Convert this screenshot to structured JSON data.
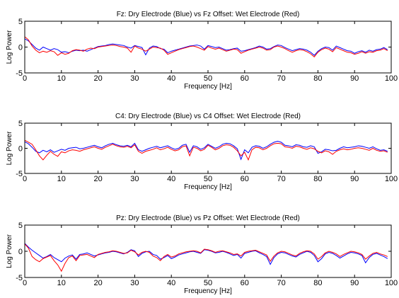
{
  "chart_data": [
    {
      "type": "line",
      "title": "Fz: Dry Electrode (Blue) vs Fz Offset: Wet Electrode (Red)",
      "xlabel": "Frequency [Hz]",
      "ylabel": "Log Power",
      "xlim": [
        0,
        100
      ],
      "ylim": [
        -5,
        5
      ],
      "xticks": [
        0,
        10,
        20,
        30,
        40,
        50,
        60,
        70,
        80,
        90,
        100
      ],
      "yticks": [
        -5,
        0,
        5
      ],
      "grid": false,
      "legend": "none",
      "x": [
        0,
        1,
        2,
        3,
        4,
        5,
        6,
        7,
        8,
        9,
        10,
        11,
        12,
        13,
        14,
        15,
        16,
        17,
        18,
        19,
        20,
        21,
        22,
        23,
        24,
        25,
        26,
        27,
        28,
        29,
        30,
        31,
        32,
        33,
        34,
        35,
        36,
        37,
        38,
        39,
        40,
        41,
        42,
        43,
        44,
        45,
        46,
        47,
        48,
        49,
        50,
        51,
        52,
        53,
        54,
        55,
        56,
        57,
        58,
        59,
        60,
        61,
        62,
        63,
        64,
        65,
        66,
        67,
        68,
        69,
        70,
        71,
        72,
        73,
        74,
        75,
        76,
        77,
        78,
        79,
        80,
        81,
        82,
        83,
        84,
        85,
        86,
        87,
        88,
        89,
        90,
        91,
        92,
        93,
        94,
        95,
        96,
        97,
        98,
        99
      ],
      "series": [
        {
          "color": "#0000ff",
          "values": [
            1.6,
            1.2,
            0.5,
            -0.2,
            -0.6,
            0.0,
            -0.3,
            -0.6,
            -0.3,
            -0.5,
            -1.0,
            -0.9,
            -1.1,
            -0.8,
            -0.6,
            -0.7,
            -0.6,
            -0.8,
            -0.5,
            -0.2,
            0.1,
            0.2,
            0.3,
            0.5,
            0.6,
            0.5,
            0.4,
            0.3,
            0.0,
            -0.2,
            0.3,
            0.1,
            -0.1,
            -1.5,
            -0.2,
            0.2,
            0.1,
            -0.3,
            -0.4,
            -1.1,
            -0.8,
            -0.6,
            -0.4,
            -0.2,
            0.0,
            0.2,
            0.3,
            0.4,
            0.2,
            -0.4,
            0.3,
            0.1,
            -0.1,
            0.0,
            -0.3,
            -0.6,
            -0.5,
            -0.3,
            -0.2,
            -0.8,
            -0.7,
            -0.5,
            -0.3,
            -0.1,
            0.2,
            0.0,
            -0.4,
            -0.3,
            0.1,
            0.4,
            0.3,
            -0.1,
            -0.4,
            -0.7,
            -0.5,
            -0.3,
            -0.4,
            -0.6,
            -1.0,
            -1.6,
            -0.8,
            -0.3,
            0.0,
            -0.1,
            -0.6,
            0.2,
            -0.1,
            -0.4,
            -0.7,
            -0.8,
            -1.2,
            -0.9,
            -0.7,
            -1.0,
            -0.6,
            -0.8,
            -0.5,
            -0.4,
            -0.1,
            -0.5
          ]
        },
        {
          "color": "#ff0000",
          "values": [
            2.0,
            1.4,
            0.2,
            -0.6,
            -1.1,
            -0.8,
            -1.0,
            -0.7,
            -0.9,
            -1.6,
            -1.1,
            -1.4,
            -1.2,
            -0.7,
            -0.5,
            -0.6,
            -0.8,
            -0.4,
            -0.2,
            -0.3,
            0.0,
            0.1,
            0.2,
            0.3,
            0.4,
            0.3,
            0.1,
            0.0,
            -0.2,
            -1.0,
            0.2,
            -0.2,
            -0.4,
            -0.8,
            -0.4,
            0.0,
            -0.1,
            -0.2,
            -0.6,
            -1.4,
            -1.1,
            -0.8,
            -0.5,
            -0.3,
            -0.1,
            0.1,
            0.2,
            0.0,
            -0.3,
            -0.6,
            0.1,
            -0.2,
            -0.4,
            -0.2,
            -0.5,
            -0.8,
            -0.6,
            -0.4,
            -0.5,
            -1.2,
            -0.9,
            -0.6,
            -0.4,
            -0.2,
            0.0,
            -0.2,
            -0.6,
            -0.5,
            0.0,
            0.2,
            0.0,
            -0.3,
            -0.7,
            -1.0,
            -0.7,
            -0.5,
            -0.6,
            -0.9,
            -1.3,
            -1.9,
            -1.0,
            -0.5,
            -0.2,
            -0.4,
            -0.9,
            -0.1,
            -0.4,
            -0.7,
            -1.0,
            -1.1,
            -1.4,
            -1.2,
            -0.9,
            -1.2,
            -0.9,
            -1.0,
            -0.7,
            -0.6,
            -0.3,
            -0.7
          ]
        }
      ]
    },
    {
      "type": "line",
      "title": "C4: Dry Electrode (Blue) vs C4 Offset: Wet Electrode (Red)",
      "xlabel": "Frequency [Hz]",
      "ylabel": "Log Power",
      "xlim": [
        0,
        100
      ],
      "ylim": [
        -5,
        5
      ],
      "xticks": [
        0,
        10,
        20,
        30,
        40,
        50,
        60,
        70,
        80,
        90,
        100
      ],
      "yticks": [
        -5,
        0,
        5
      ],
      "grid": false,
      "legend": "none",
      "x": [
        0,
        1,
        2,
        3,
        4,
        5,
        6,
        7,
        8,
        9,
        10,
        11,
        12,
        13,
        14,
        15,
        16,
        17,
        18,
        19,
        20,
        21,
        22,
        23,
        24,
        25,
        26,
        27,
        28,
        29,
        30,
        31,
        32,
        33,
        34,
        35,
        36,
        37,
        38,
        39,
        40,
        41,
        42,
        43,
        44,
        45,
        46,
        47,
        48,
        49,
        50,
        51,
        52,
        53,
        54,
        55,
        56,
        57,
        58,
        59,
        60,
        61,
        62,
        63,
        64,
        65,
        66,
        67,
        68,
        69,
        70,
        71,
        72,
        73,
        74,
        75,
        76,
        77,
        78,
        79,
        80,
        81,
        82,
        83,
        84,
        85,
        86,
        87,
        88,
        89,
        90,
        91,
        92,
        93,
        94,
        95,
        96,
        97,
        98,
        99
      ],
      "series": [
        {
          "color": "#0000ff",
          "values": [
            1.3,
            0.9,
            0.2,
            -0.6,
            -0.9,
            -0.4,
            -0.7,
            -0.3,
            -0.8,
            -0.5,
            -0.2,
            -0.4,
            0.0,
            0.1,
            0.2,
            -0.1,
            0.0,
            0.2,
            0.4,
            0.6,
            0.3,
            0.1,
            0.5,
            0.8,
            1.0,
            0.7,
            0.5,
            0.4,
            0.6,
            0.3,
            1.0,
            -0.3,
            -0.6,
            -0.3,
            0.0,
            0.2,
            0.4,
            0.1,
            0.3,
            0.5,
            0.1,
            -0.2,
            0.0,
            0.6,
            0.8,
            -0.8,
            0.5,
            0.3,
            -0.2,
            0.1,
            0.8,
            0.4,
            0.0,
            0.3,
            0.8,
            1.0,
            0.9,
            0.5,
            -0.1,
            -2.2,
            -0.3,
            -0.9,
            0.2,
            0.5,
            0.4,
            0.0,
            0.3,
            0.8,
            1.2,
            1.4,
            1.2,
            0.6,
            0.5,
            0.3,
            0.7,
            0.6,
            0.3,
            0.2,
            0.5,
            0.3,
            -1.0,
            -0.7,
            -0.2,
            -0.3,
            -0.5,
            -0.4,
            0.0,
            0.3,
            0.1,
            0.2,
            0.3,
            0.5,
            0.4,
            0.2,
            0.0,
            0.3,
            -0.1,
            -0.4,
            -0.3,
            -0.6
          ]
        },
        {
          "color": "#ff0000",
          "values": [
            1.6,
            1.2,
            0.8,
            -0.3,
            -1.5,
            -2.3,
            -1.4,
            -0.6,
            -1.2,
            -1.6,
            -0.7,
            -0.9,
            -0.5,
            -0.3,
            -0.4,
            -0.6,
            -0.3,
            -0.1,
            0.1,
            0.3,
            0.0,
            -0.2,
            0.2,
            0.5,
            0.8,
            0.5,
            0.3,
            0.2,
            0.4,
            0.1,
            0.7,
            -0.6,
            -1.0,
            -0.6,
            -0.4,
            -0.2,
            0.1,
            -0.3,
            -0.1,
            0.2,
            -0.2,
            -0.5,
            -0.3,
            0.3,
            0.5,
            -1.5,
            0.2,
            0.0,
            -0.5,
            -0.2,
            0.6,
            0.2,
            -0.3,
            0.0,
            0.5,
            0.7,
            0.6,
            0.2,
            -0.5,
            -1.5,
            -0.8,
            -2.3,
            -0.3,
            0.2,
            0.1,
            -0.3,
            0.0,
            0.5,
            0.9,
            1.0,
            0.9,
            0.3,
            0.2,
            0.0,
            0.4,
            0.3,
            0.0,
            -0.2,
            0.1,
            -0.1,
            -0.6,
            -0.9,
            -0.5,
            -0.7,
            -1.2,
            -0.6,
            -0.3,
            -0.1,
            -0.3,
            -0.2,
            0.0,
            0.1,
            0.0,
            -0.2,
            -0.4,
            0.0,
            -0.4,
            -0.6,
            -0.5,
            -0.8
          ]
        }
      ]
    },
    {
      "type": "line",
      "title": "Pz: Dry Electrode (Blue) vs Pz Offset: Wet Electrode (Red)",
      "xlabel": "Frequency [Hz]",
      "ylabel": "Log Power",
      "xlim": [
        0,
        100
      ],
      "ylim": [
        -5,
        5
      ],
      "xticks": [
        0,
        10,
        20,
        30,
        40,
        50,
        60,
        70,
        80,
        90,
        100
      ],
      "yticks": [
        -5,
        0,
        5
      ],
      "grid": false,
      "legend": "none",
      "x": [
        0,
        1,
        2,
        3,
        4,
        5,
        6,
        7,
        8,
        9,
        10,
        11,
        12,
        13,
        14,
        15,
        16,
        17,
        18,
        19,
        20,
        21,
        22,
        23,
        24,
        25,
        26,
        27,
        28,
        29,
        30,
        31,
        32,
        33,
        34,
        35,
        36,
        37,
        38,
        39,
        40,
        41,
        42,
        43,
        44,
        45,
        46,
        47,
        48,
        49,
        50,
        51,
        52,
        53,
        54,
        55,
        56,
        57,
        58,
        59,
        60,
        61,
        62,
        63,
        64,
        65,
        66,
        67,
        68,
        69,
        70,
        71,
        72,
        73,
        74,
        75,
        76,
        77,
        78,
        79,
        80,
        81,
        82,
        83,
        84,
        85,
        86,
        87,
        88,
        89,
        90,
        91,
        92,
        93,
        94,
        95,
        96,
        97,
        98,
        99
      ],
      "series": [
        {
          "color": "#0000ff",
          "values": [
            1.5,
            0.8,
            0.2,
            -0.3,
            -0.8,
            -1.3,
            -1.0,
            -0.6,
            -1.2,
            -1.6,
            -2.0,
            -1.3,
            -0.9,
            -0.7,
            -1.5,
            -0.6,
            -0.5,
            -0.3,
            -0.6,
            -0.9,
            -0.7,
            -0.5,
            -0.3,
            -0.2,
            0.0,
            -0.1,
            -0.3,
            -0.5,
            -0.2,
            0.3,
            0.1,
            -1.0,
            -0.4,
            -0.1,
            0.0,
            -0.6,
            -0.8,
            -1.5,
            -1.2,
            -0.8,
            -1.4,
            -1.1,
            -0.7,
            -0.5,
            -0.3,
            -0.1,
            0.0,
            -0.2,
            -0.4,
            0.3,
            0.2,
            0.0,
            -0.3,
            -0.2,
            0.0,
            -0.2,
            -0.5,
            -0.8,
            -0.6,
            -1.3,
            -0.4,
            -0.2,
            0.0,
            0.1,
            -0.3,
            -0.6,
            -1.0,
            -2.5,
            -1.2,
            -0.5,
            -0.2,
            -0.3,
            -0.6,
            -0.9,
            -1.1,
            -0.6,
            -0.3,
            0.0,
            -0.2,
            -0.8,
            -2.0,
            -1.4,
            -0.5,
            -0.2,
            -0.4,
            -0.8,
            -1.3,
            -0.9,
            -0.5,
            -0.2,
            -0.3,
            -0.5,
            -0.8,
            -2.2,
            -1.2,
            -0.6,
            -0.4,
            -0.7,
            -1.0,
            -1.4
          ]
        },
        {
          "color": "#ff0000",
          "values": [
            1.4,
            0.6,
            -1.0,
            -1.6,
            -2.0,
            -1.4,
            -1.1,
            -0.8,
            -1.8,
            -2.6,
            -3.8,
            -2.3,
            -1.2,
            -0.9,
            -1.8,
            -0.8,
            -0.7,
            -0.6,
            -0.9,
            -1.2,
            -0.6,
            -0.4,
            -0.2,
            -0.1,
            0.1,
            0.0,
            -0.2,
            -0.4,
            -0.3,
            0.2,
            -0.1,
            -0.7,
            -0.2,
            0.0,
            -0.2,
            -0.9,
            -1.2,
            -1.8,
            -1.0,
            -0.6,
            -1.1,
            -0.9,
            -0.5,
            -0.3,
            -0.1,
            0.0,
            0.1,
            0.0,
            -0.3,
            0.4,
            0.3,
            0.1,
            -0.2,
            0.0,
            0.1,
            -0.1,
            -0.3,
            -0.6,
            -0.5,
            -0.9,
            -0.2,
            0.0,
            0.1,
            0.2,
            -0.1,
            -0.4,
            -0.7,
            -1.9,
            -0.9,
            -0.3,
            0.0,
            -0.1,
            -0.4,
            -0.7,
            -0.9,
            -0.4,
            -0.1,
            0.1,
            0.0,
            -0.5,
            -1.5,
            -1.0,
            -0.3,
            0.0,
            -0.2,
            -0.5,
            -1.0,
            -0.6,
            -0.3,
            0.0,
            -0.1,
            -0.3,
            -0.6,
            -1.5,
            -0.9,
            -0.4,
            -0.2,
            -0.5,
            -0.7,
            -1.0
          ]
        }
      ]
    }
  ]
}
